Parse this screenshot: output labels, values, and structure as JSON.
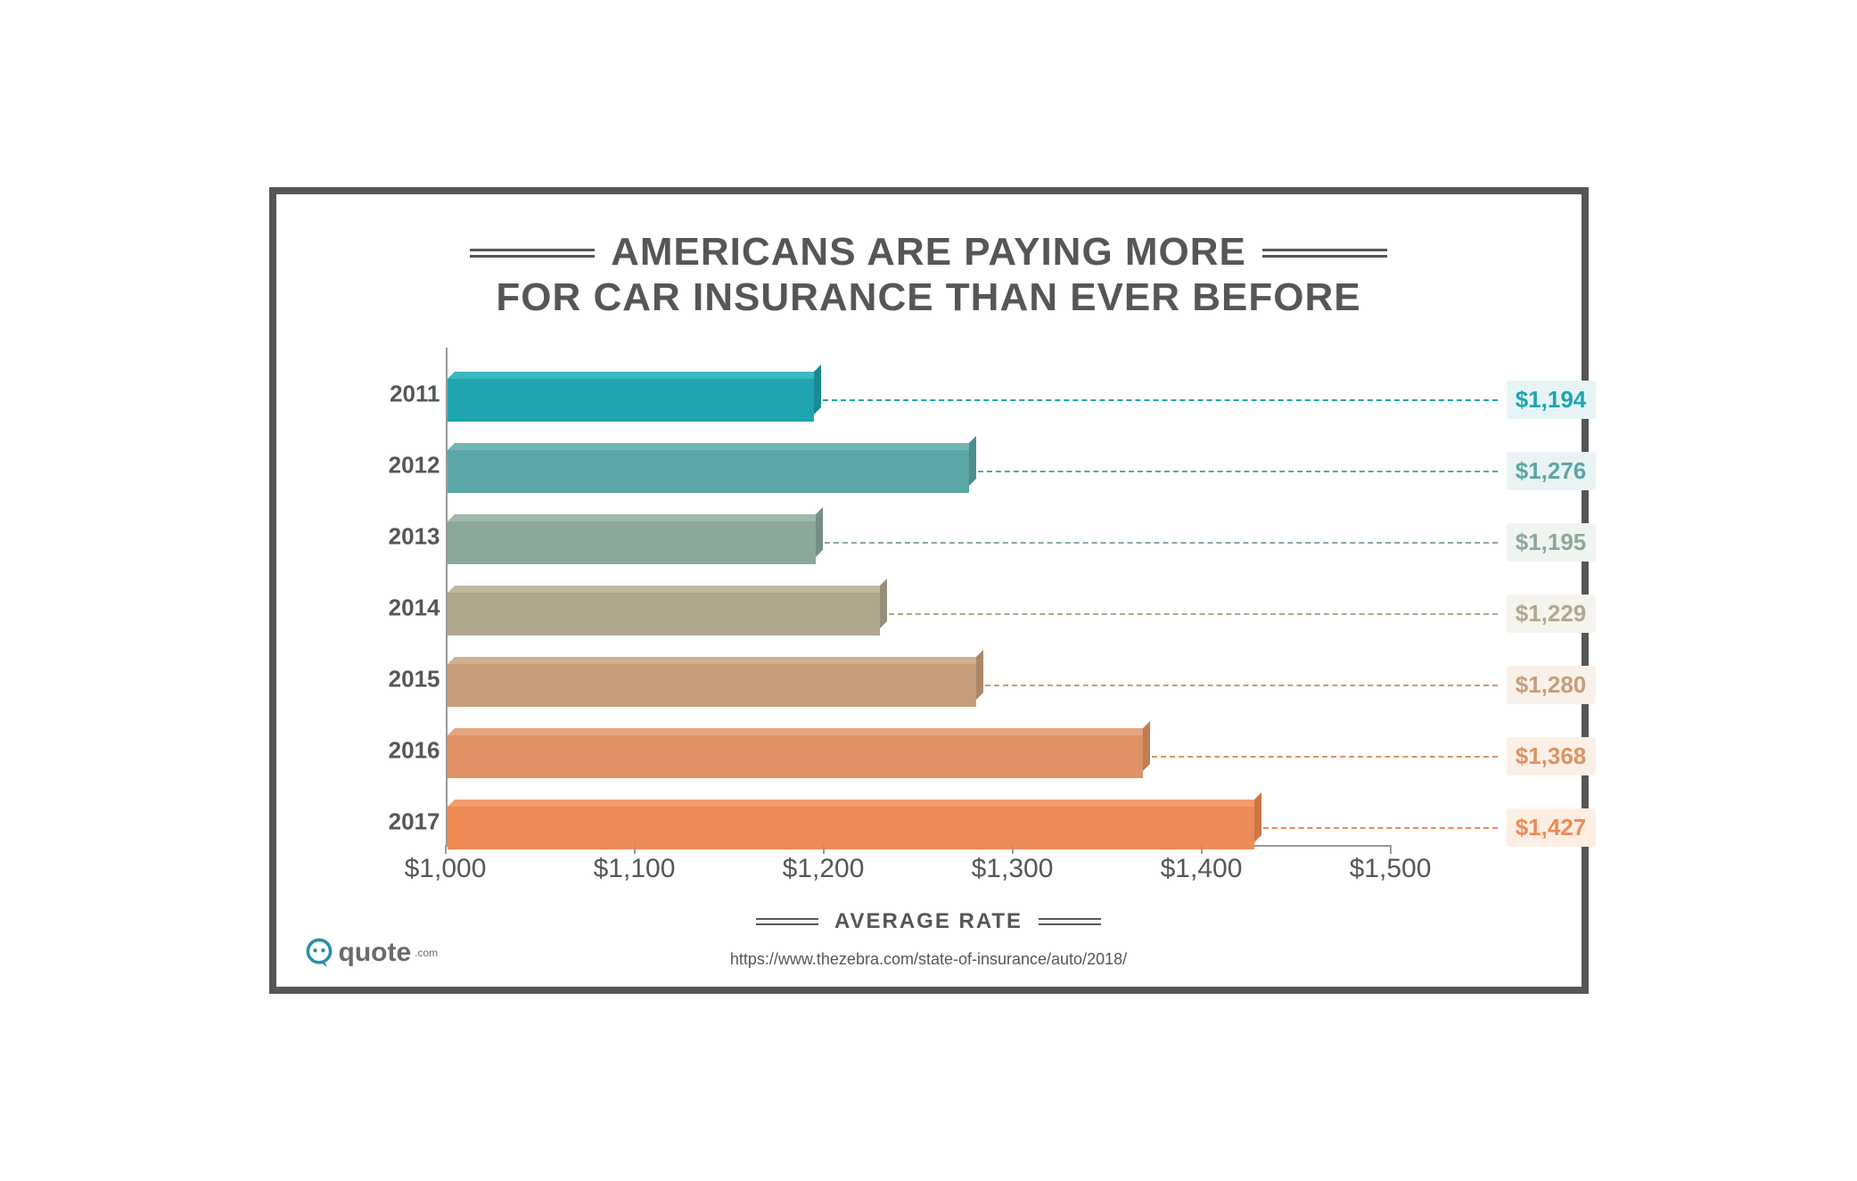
{
  "title": {
    "line1": "AMERICANS ARE PAYING MORE",
    "line2": "FOR CAR INSURANCE THAN EVER BEFORE",
    "fontsize": 44,
    "color": "#565656"
  },
  "chart": {
    "type": "bar",
    "orientation": "horizontal",
    "xlim": [
      1000,
      1500
    ],
    "xtick_step": 100,
    "xticks": [
      "$1,000",
      "$1,100",
      "$1,200",
      "$1,300",
      "$1,400",
      "$1,500"
    ],
    "xlabel": "AVERAGE RATE",
    "xlabel_fontsize": 24,
    "ylabel_fontsize": 26,
    "value_fontsize": 26,
    "xtick_fontsize": 30,
    "background_color": "#ffffff",
    "axis_color": "#999999",
    "bars": [
      {
        "year": "2011",
        "value": 1194,
        "label": "$1,194",
        "front": "#1ea5b0",
        "top": "#3bb9c1",
        "side": "#178a93",
        "badge_bg": "#e7f4f5"
      },
      {
        "year": "2012",
        "value": 1276,
        "label": "$1,276",
        "front": "#5aa6a4",
        "top": "#74b6b4",
        "side": "#4a8f8d",
        "badge_bg": "#eaf3f3"
      },
      {
        "year": "2013",
        "value": 1195,
        "label": "$1,195",
        "front": "#8ba89a",
        "top": "#a0b9ac",
        "side": "#768f83",
        "badge_bg": "#f0f4f1"
      },
      {
        "year": "2014",
        "value": 1229,
        "label": "$1,229",
        "front": "#b0a78d",
        "top": "#c0b8a0",
        "side": "#968e77",
        "badge_bg": "#f5f3ee"
      },
      {
        "year": "2015",
        "value": 1280,
        "label": "$1,280",
        "front": "#c69d7b",
        "top": "#d3af90",
        "side": "#ab8667",
        "badge_bg": "#f8f1ea"
      },
      {
        "year": "2016",
        "value": 1368,
        "label": "$1,368",
        "front": "#de9265",
        "top": "#e6a57d",
        "side": "#c07c52",
        "badge_bg": "#fbefe6"
      },
      {
        "year": "2017",
        "value": 1427,
        "label": "$1,427",
        "front": "#ee8a55",
        "top": "#f39d6e",
        "side": "#d07544",
        "badge_bg": "#fdeee4"
      }
    ]
  },
  "source": {
    "text": "https://www.thezebra.com/state-of-insurance/auto/2018/",
    "fontsize": 18
  },
  "logo": {
    "text": "quote",
    "suffix": ".com",
    "icon_color": "#2b8fa8",
    "text_fontsize": 30
  },
  "frame": {
    "border_color": "#565656",
    "border_width": 8
  }
}
